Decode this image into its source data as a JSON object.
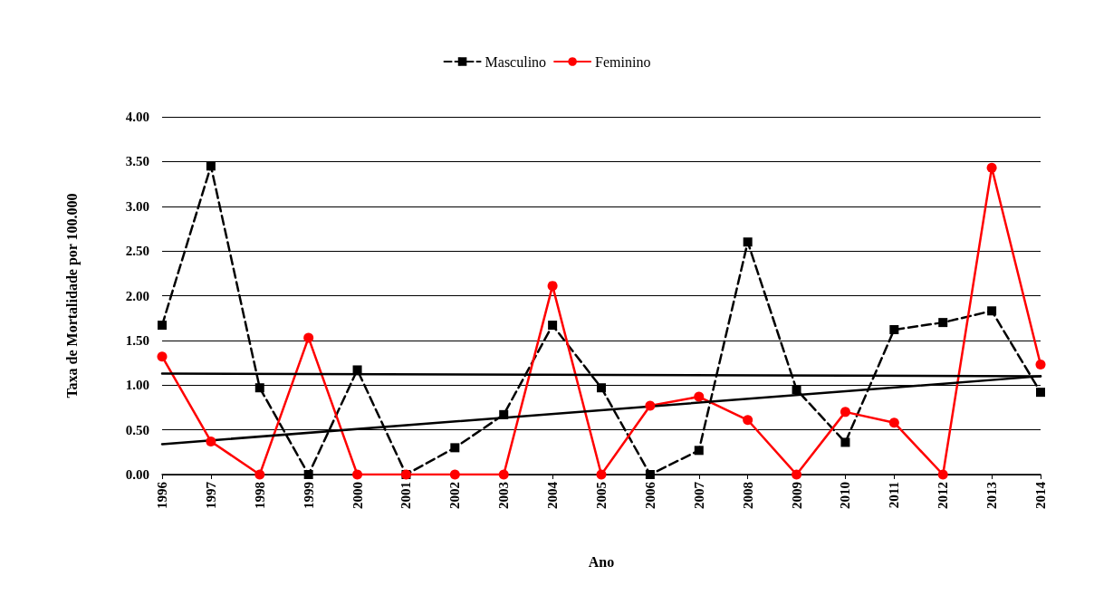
{
  "chart_data": {
    "type": "line",
    "xlabel": "Ano",
    "ylabel": "Taxa de Mortalidade por 100.000",
    "categories": [
      "1996",
      "1997",
      "1998",
      "1999",
      "2000",
      "2001",
      "2002",
      "2003",
      "2004",
      "2005",
      "2006",
      "2007",
      "2008",
      "2009",
      "2010",
      "2011",
      "2012",
      "2013",
      "2014"
    ],
    "series": [
      {
        "name": "Masculino",
        "color": "#000000",
        "marker": "square",
        "line_style": "dashed",
        "values": [
          1.67,
          3.45,
          0.97,
          0,
          1.17,
          0,
          0.3,
          0.67,
          1.67,
          0.97,
          0,
          0.27,
          2.6,
          0.95,
          0.36,
          1.62,
          1.7,
          1.83,
          0.92
        ]
      },
      {
        "name": "Feminino",
        "color": "#ff0000",
        "marker": "circle",
        "line_style": "solid",
        "values": [
          1.32,
          0.37,
          0,
          1.53,
          0,
          0,
          0,
          0,
          2.11,
          0,
          0.77,
          0.87,
          0.61,
          0,
          0.7,
          0.58,
          0,
          3.43,
          1.23
        ]
      },
      {
        "type": "line",
        "color": "#000000",
        "marker": "none",
        "line_style": "solid",
        "values": [
          1.13,
          null,
          null,
          null,
          null,
          null,
          null,
          null,
          null,
          null,
          null,
          null,
          null,
          null,
          null,
          null,
          null,
          null,
          1.1
        ]
      },
      {
        "type": "line",
        "color": "#000000",
        "marker": "none",
        "line_style": "solid",
        "values": [
          0.34,
          null,
          null,
          null,
          null,
          null,
          null,
          null,
          null,
          null,
          null,
          null,
          null,
          null,
          null,
          null,
          null,
          null,
          1.1
        ]
      }
    ],
    "ylim": [
      0,
      4
    ],
    "yticks": [
      {
        "value": 0,
        "label": "0.00"
      },
      {
        "value": 0.5,
        "label": "0.50"
      },
      {
        "value": 1,
        "label": "1.00"
      },
      {
        "value": 1.5,
        "label": "1.50"
      },
      {
        "value": 2,
        "label": "2.00"
      },
      {
        "value": 2.5,
        "label": "2.50"
      },
      {
        "value": 3,
        "label": "3.00"
      },
      {
        "value": 3.5,
        "label": "3.50"
      },
      {
        "value": 4,
        "label": "4.00"
      }
    ],
    "grid": "y",
    "legend": "top"
  }
}
